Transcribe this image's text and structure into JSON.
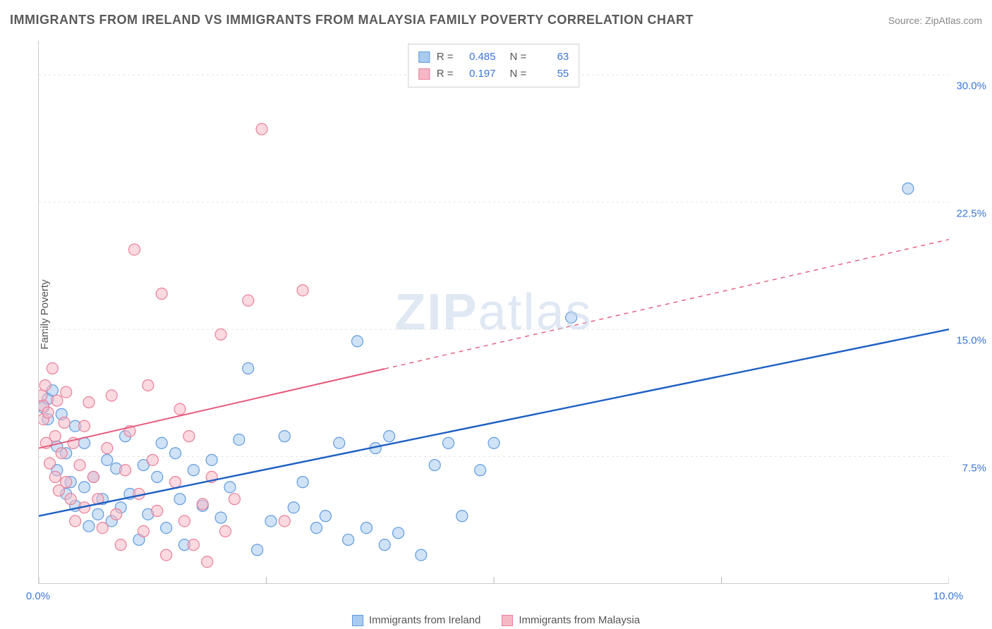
{
  "header": {
    "title": "IMMIGRANTS FROM IRELAND VS IMMIGRANTS FROM MALAYSIA FAMILY POVERTY CORRELATION CHART",
    "source": "Source: ZipAtlas.com"
  },
  "watermark": {
    "zip": "ZIP",
    "atlas": "atlas"
  },
  "y_axis_label": "Family Poverty",
  "chart": {
    "type": "scatter",
    "xlim": [
      0,
      10
    ],
    "ylim": [
      0,
      32
    ],
    "x_ticks": [
      0,
      2.5,
      5,
      7.5,
      10
    ],
    "y_ticks": [
      7.5,
      15,
      22.5,
      30
    ],
    "x_tick_labels": [
      "0.0%",
      "",
      "",
      "",
      "10.0%"
    ],
    "y_tick_labels": [
      "7.5%",
      "15.0%",
      "22.5%",
      "30.0%"
    ],
    "grid_color": "#e3e3e3",
    "background_color": "#ffffff",
    "marker_radius": 8,
    "marker_stroke_width": 1.2,
    "series": [
      {
        "name": "Immigrants from Ireland",
        "fill": "#a9cbef",
        "stroke": "#5f9bdf",
        "fill_opacity": 0.55,
        "R": "0.485",
        "N": "63",
        "points": [
          [
            0.05,
            10.4
          ],
          [
            0.1,
            9.7
          ],
          [
            0.1,
            10.9
          ],
          [
            0.15,
            11.4
          ],
          [
            0.2,
            8.1
          ],
          [
            0.2,
            6.7
          ],
          [
            0.25,
            10.0
          ],
          [
            0.3,
            5.3
          ],
          [
            0.3,
            7.7
          ],
          [
            0.35,
            6.0
          ],
          [
            0.4,
            4.6
          ],
          [
            0.4,
            9.3
          ],
          [
            0.5,
            5.7
          ],
          [
            0.5,
            8.3
          ],
          [
            0.55,
            3.4
          ],
          [
            0.6,
            6.3
          ],
          [
            0.65,
            4.1
          ],
          [
            0.7,
            5.0
          ],
          [
            0.75,
            7.3
          ],
          [
            0.8,
            3.7
          ],
          [
            0.85,
            6.8
          ],
          [
            0.9,
            4.5
          ],
          [
            0.95,
            8.7
          ],
          [
            1.0,
            5.3
          ],
          [
            1.1,
            2.6
          ],
          [
            1.15,
            7.0
          ],
          [
            1.2,
            4.1
          ],
          [
            1.3,
            6.3
          ],
          [
            1.35,
            8.3
          ],
          [
            1.4,
            3.3
          ],
          [
            1.5,
            7.7
          ],
          [
            1.55,
            5.0
          ],
          [
            1.6,
            2.3
          ],
          [
            1.7,
            6.7
          ],
          [
            1.8,
            4.6
          ],
          [
            1.9,
            7.3
          ],
          [
            2.0,
            3.9
          ],
          [
            2.1,
            5.7
          ],
          [
            2.2,
            8.5
          ],
          [
            2.3,
            12.7
          ],
          [
            2.4,
            2.0
          ],
          [
            2.55,
            3.7
          ],
          [
            2.7,
            8.7
          ],
          [
            2.8,
            4.5
          ],
          [
            2.9,
            6.0
          ],
          [
            3.05,
            3.3
          ],
          [
            3.15,
            4.0
          ],
          [
            3.3,
            8.3
          ],
          [
            3.4,
            2.6
          ],
          [
            3.5,
            14.3
          ],
          [
            3.6,
            3.3
          ],
          [
            3.7,
            8.0
          ],
          [
            3.8,
            2.3
          ],
          [
            3.85,
            8.7
          ],
          [
            3.95,
            3.0
          ],
          [
            4.2,
            1.7
          ],
          [
            4.35,
            7.0
          ],
          [
            4.5,
            8.3
          ],
          [
            4.65,
            4.0
          ],
          [
            4.85,
            6.7
          ],
          [
            5.0,
            8.3
          ],
          [
            5.85,
            15.7
          ],
          [
            9.55,
            23.3
          ]
        ],
        "trend": {
          "x1": 0,
          "y1": 4.0,
          "x2": 10,
          "y2": 15.0,
          "stroke": "#1d5fc4",
          "width": 2.4
        }
      },
      {
        "name": "Immigrants from Malaysia",
        "fill": "#f5b9c6",
        "stroke": "#ea7f9a",
        "fill_opacity": 0.55,
        "R": "0.197",
        "N": "55",
        "points": [
          [
            0.03,
            11.1
          ],
          [
            0.05,
            10.5
          ],
          [
            0.05,
            9.7
          ],
          [
            0.07,
            11.7
          ],
          [
            0.08,
            8.3
          ],
          [
            0.1,
            10.1
          ],
          [
            0.12,
            7.1
          ],
          [
            0.15,
            12.7
          ],
          [
            0.18,
            8.7
          ],
          [
            0.18,
            6.3
          ],
          [
            0.2,
            10.8
          ],
          [
            0.22,
            5.5
          ],
          [
            0.25,
            7.7
          ],
          [
            0.28,
            9.5
          ],
          [
            0.3,
            11.3
          ],
          [
            0.3,
            6.0
          ],
          [
            0.35,
            5.0
          ],
          [
            0.38,
            8.3
          ],
          [
            0.4,
            3.7
          ],
          [
            0.45,
            7.0
          ],
          [
            0.5,
            4.5
          ],
          [
            0.5,
            9.3
          ],
          [
            0.55,
            10.7
          ],
          [
            0.6,
            6.3
          ],
          [
            0.65,
            5.0
          ],
          [
            0.7,
            3.3
          ],
          [
            0.75,
            8.0
          ],
          [
            0.8,
            11.1
          ],
          [
            0.85,
            4.1
          ],
          [
            0.9,
            2.3
          ],
          [
            0.95,
            6.7
          ],
          [
            1.0,
            9.0
          ],
          [
            1.05,
            19.7
          ],
          [
            1.1,
            5.3
          ],
          [
            1.15,
            3.1
          ],
          [
            1.2,
            11.7
          ],
          [
            1.25,
            7.3
          ],
          [
            1.3,
            4.3
          ],
          [
            1.35,
            17.1
          ],
          [
            1.4,
            1.7
          ],
          [
            1.5,
            6.0
          ],
          [
            1.55,
            10.3
          ],
          [
            1.6,
            3.7
          ],
          [
            1.65,
            8.7
          ],
          [
            1.7,
            2.3
          ],
          [
            1.8,
            4.7
          ],
          [
            1.85,
            1.3
          ],
          [
            1.9,
            6.3
          ],
          [
            2.0,
            14.7
          ],
          [
            2.05,
            3.1
          ],
          [
            2.15,
            5.0
          ],
          [
            2.3,
            16.7
          ],
          [
            2.45,
            26.8
          ],
          [
            2.7,
            3.7
          ],
          [
            2.9,
            17.3
          ]
        ],
        "trend": {
          "x1": 0,
          "y1": 8.0,
          "x2": 10,
          "y2": 20.3,
          "solid_until_x": 3.8,
          "stroke": "#e65a7a",
          "width": 2.0
        }
      }
    ]
  },
  "legend_bottom": {
    "items": [
      {
        "label": "Immigrants from Ireland",
        "fill": "#a9cbef",
        "stroke": "#5f9bdf"
      },
      {
        "label": "Immigrants from Malaysia",
        "fill": "#f5b9c6",
        "stroke": "#ea7f9a"
      }
    ]
  }
}
